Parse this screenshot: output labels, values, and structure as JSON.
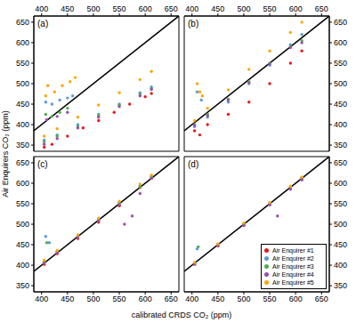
{
  "chart_data": {
    "type": "scatter",
    "xlabel": "calibrated CRDS CO₂ (ppm)",
    "ylabel": "Air Enquirers CO₂ (ppm)",
    "xlim": [
      385,
      665
    ],
    "ylim": [
      335,
      665
    ],
    "xticks": [
      400,
      450,
      500,
      550,
      600,
      650
    ],
    "yticks": [
      350,
      400,
      450,
      500,
      550,
      600,
      650
    ],
    "legend": "lower right",
    "panels": [
      {
        "title": "(a)",
        "series": [
          {
            "type": "line",
            "color": "#000000",
            "x": [
              385,
              665
            ],
            "values": [
              385,
              665
            ]
          },
          {
            "name": "Air Enquirer #1",
            "color": "#e41a1c",
            "x": [
              405,
              420,
              450,
              480,
              510,
              540,
              570,
              600,
              612
            ],
            "values": [
              345,
              352,
              372,
              392,
              410,
              430,
              450,
              468,
              476
            ]
          },
          {
            "name": "Air Enquirer #2",
            "color": "#5b9bd5",
            "x": [
              405,
              430,
              470,
              510,
              550,
              590,
              612,
              408,
              420,
              435,
              450,
              460
            ],
            "values": [
              362,
              375,
              400,
              425,
              450,
              478,
              492,
              455,
              450,
              460,
              465,
              470
            ]
          },
          {
            "name": "Air Enquirer #3",
            "color": "#4daf4a",
            "x": [
              405,
              430,
              470,
              510,
              550,
              590,
              612,
              408,
              420,
              435,
              450
            ],
            "values": [
              358,
              372,
              396,
              422,
              448,
              474,
              488,
              425,
              420,
              430,
              440
            ]
          },
          {
            "name": "Air Enquirer #4",
            "color": "#9b4fb0",
            "x": [
              405,
              430,
              470,
              510,
              550,
              590,
              612,
              410,
              430,
              450
            ],
            "values": [
              352,
              366,
              392,
              418,
              444,
              470,
              486,
              412,
              420,
              430
            ]
          },
          {
            "name": "Air Enquirer #5",
            "color": "#ffa500",
            "x": [
              405,
              430,
              470,
              510,
              550,
              590,
              612,
              408,
              412,
              425,
              440,
              455,
              465
            ],
            "values": [
              372,
              390,
              418,
              448,
              478,
              510,
              530,
              470,
              495,
              480,
              495,
              505,
              515
            ]
          }
        ]
      },
      {
        "title": "(b)",
        "series": [
          {
            "type": "line",
            "color": "#000000",
            "x": [
              385,
              665
            ],
            "values": [
              385,
              665
            ]
          },
          {
            "name": "Air Enquirer #1",
            "color": "#e41a1c",
            "x": [
              405,
              415,
              430,
              470,
              510,
              550,
              590,
              612
            ],
            "values": [
              385,
              375,
              400,
              425,
              455,
              500,
              550,
              580
            ]
          },
          {
            "name": "Air Enquirer #2",
            "color": "#5b9bd5",
            "x": [
              405,
              430,
              470,
              510,
              550,
              590,
              612,
              410,
              418
            ],
            "values": [
              395,
              418,
              455,
              500,
              545,
              595,
              620,
              480,
              460
            ]
          },
          {
            "name": "Air Enquirer #3",
            "color": "#4daf4a",
            "x": [
              405,
              430,
              470,
              510,
              550,
              590,
              612
            ],
            "values": [
              400,
              425,
              462,
              505,
              550,
              590,
              605
            ]
          },
          {
            "name": "Air Enquirer #4",
            "color": "#9b4fb0",
            "x": [
              405,
              430,
              470,
              510,
              550,
              590,
              612
            ],
            "values": [
              398,
              422,
              460,
              502,
              548,
              588,
              600
            ]
          },
          {
            "name": "Air Enquirer #5",
            "color": "#ffa500",
            "x": [
              405,
              430,
              470,
              510,
              550,
              590,
              612,
              410,
              415,
              420
            ],
            "values": [
              410,
              440,
              485,
              535,
              580,
              625,
              650,
              500,
              480,
              470
            ]
          }
        ]
      },
      {
        "title": "(c)",
        "series": [
          {
            "type": "line",
            "color": "#000000",
            "x": [
              385,
              665
            ],
            "values": [
              385,
              665
            ]
          },
          {
            "name": "Air Enquirer #1",
            "color": "#e41a1c",
            "x": [
              405,
              430,
              470,
              510,
              550,
              590,
              612
            ],
            "values": [
              402,
              428,
              465,
              505,
              545,
              590,
              612
            ]
          },
          {
            "name": "Air Enquirer #2",
            "color": "#5b9bd5",
            "x": [
              405,
              430,
              470,
              510,
              550,
              590,
              612,
              408,
              415
            ],
            "values": [
              408,
              432,
              470,
              512,
              552,
              595,
              618,
              470,
              455
            ]
          },
          {
            "name": "Air Enquirer #3",
            "color": "#4daf4a",
            "x": [
              405,
              430,
              470,
              510,
              550,
              590,
              612,
              410
            ],
            "values": [
              410,
              433,
              470,
              510,
              550,
              592,
              615,
              455
            ]
          },
          {
            "name": "Air Enquirer #4",
            "color": "#9b4fb0",
            "x": [
              405,
              430,
              470,
              510,
              550,
              560,
              575,
              590,
              612
            ],
            "values": [
              405,
              430,
              468,
              508,
              548,
              500,
              520,
              575,
              612
            ]
          },
          {
            "name": "Air Enquirer #5",
            "color": "#ffa500",
            "x": [
              405,
              430,
              470,
              510,
              550,
              590,
              612
            ],
            "values": [
              412,
              436,
              474,
              515,
              556,
              598,
              620
            ]
          }
        ]
      },
      {
        "title": "(d)",
        "series": [
          {
            "type": "line",
            "color": "#000000",
            "x": [
              385,
              665
            ],
            "values": [
              385,
              665
            ]
          },
          {
            "name": "Air Enquirer #1",
            "color": "#e41a1c",
            "x": [
              405,
              450,
              500,
              550,
              590,
              612
            ],
            "values": [
              402,
              447,
              497,
              548,
              588,
              610
            ]
          },
          {
            "name": "Air Enquirer #2",
            "color": "#5b9bd5",
            "x": [
              405,
              450,
              500,
              550,
              590,
              612,
              410
            ],
            "values": [
              406,
              451,
              501,
              551,
              591,
              614,
              440
            ]
          },
          {
            "name": "Air Enquirer #3",
            "color": "#4daf4a",
            "x": [
              405,
              450,
              500,
              550,
              590,
              612,
              412
            ],
            "values": [
              405,
              450,
              500,
              550,
              590,
              612,
              445
            ]
          },
          {
            "name": "Air Enquirer #4",
            "color": "#9b4fb0",
            "x": [
              405,
              450,
              500,
              550,
              565,
              590,
              612
            ],
            "values": [
              403,
              448,
              497,
              547,
              520,
              585,
              608
            ]
          },
          {
            "name": "Air Enquirer #5",
            "color": "#ffa500",
            "x": [
              405,
              450,
              500,
              550,
              590,
              612
            ],
            "values": [
              407,
              452,
              503,
              553,
              593,
              615
            ]
          }
        ]
      }
    ]
  }
}
